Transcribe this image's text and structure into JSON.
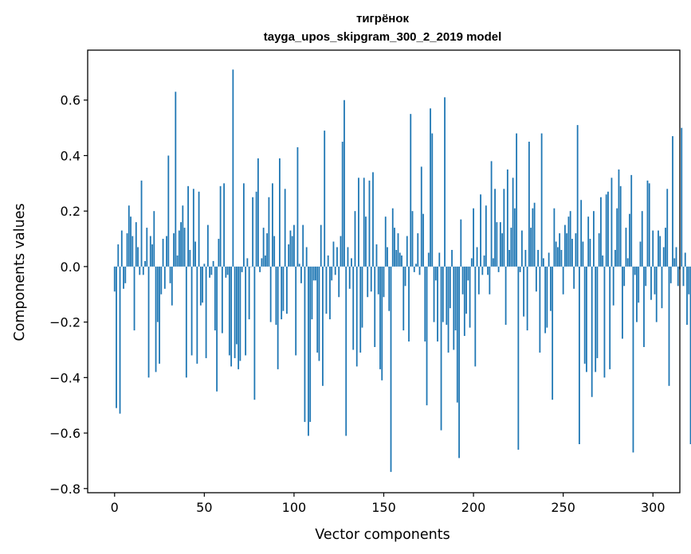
{
  "chart_data": {
    "type": "bar",
    "title": "тигрёнок",
    "subtitle": "tayga_upos_skipgram_300_2_2019 model",
    "xlabel": "Vector components",
    "ylabel": "Components values",
    "xlim": [
      -15,
      315
    ],
    "ylim": [
      -0.815,
      0.78
    ],
    "xticks": [
      0,
      50,
      100,
      150,
      200,
      250,
      300
    ],
    "xtick_labels": [
      "0",
      "50",
      "100",
      "150",
      "200",
      "250",
      "300"
    ],
    "yticks": [
      -0.8,
      -0.6,
      -0.4,
      -0.2,
      0.0,
      0.2,
      0.4,
      0.6
    ],
    "ytick_labels": [
      "−0.8",
      "−0.6",
      "−0.4",
      "−0.2",
      "0.0",
      "0.2",
      "0.4",
      "0.6"
    ],
    "bar_color": "#1f77b4",
    "values": [
      -0.09,
      -0.51,
      0.08,
      -0.53,
      0.13,
      -0.08,
      -0.06,
      0.12,
      0.22,
      0.18,
      0.11,
      -0.23,
      0.16,
      0.07,
      -0.03,
      0.31,
      -0.03,
      0.02,
      0.14,
      -0.4,
      0.11,
      0.08,
      0.2,
      -0.38,
      -0.2,
      -0.35,
      -0.1,
      0.1,
      -0.08,
      0.11,
      0.4,
      -0.06,
      -0.14,
      0.12,
      0.63,
      0.04,
      0.13,
      0.16,
      0.22,
      0.14,
      -0.4,
      0.29,
      0.06,
      -0.32,
      0.28,
      0.09,
      -0.35,
      0.27,
      -0.14,
      -0.13,
      0.01,
      -0.33,
      0.15,
      -0.04,
      -0.03,
      0.02,
      -0.23,
      -0.45,
      0.1,
      0.29,
      -0.24,
      0.3,
      -0.04,
      -0.03,
      -0.32,
      -0.36,
      0.71,
      -0.33,
      -0.28,
      -0.37,
      -0.34,
      -0.02,
      0.3,
      -0.32,
      0.03,
      -0.19,
      0.0,
      0.25,
      -0.48,
      0.27,
      0.39,
      -0.02,
      0.03,
      0.14,
      0.04,
      0.12,
      0.25,
      -0.2,
      0.3,
      0.11,
      -0.21,
      -0.37,
      0.39,
      -0.19,
      -0.16,
      0.28,
      -0.17,
      0.08,
      0.13,
      0.11,
      0.15,
      -0.32,
      0.43,
      0.01,
      -0.06,
      0.15,
      -0.56,
      0.07,
      -0.61,
      -0.56,
      -0.19,
      -0.05,
      -0.05,
      -0.31,
      -0.34,
      0.15,
      -0.43,
      0.49,
      -0.17,
      0.04,
      -0.19,
      -0.05,
      0.09,
      -0.03,
      0.07,
      -0.11,
      0.11,
      0.45,
      0.6,
      -0.61,
      0.07,
      -0.08,
      0.03,
      -0.3,
      0.2,
      -0.36,
      0.32,
      -0.31,
      -0.22,
      0.32,
      0.18,
      -0.11,
      0.31,
      -0.09,
      0.34,
      -0.29,
      0.08,
      -0.1,
      -0.37,
      -0.41,
      -0.11,
      0.18,
      0.07,
      -0.16,
      -0.74,
      0.21,
      0.14,
      0.06,
      0.12,
      0.05,
      0.04,
      -0.23,
      -0.07,
      0.11,
      -0.27,
      0.55,
      0.2,
      -0.02,
      0.01,
      0.12,
      -0.03,
      0.36,
      0.19,
      -0.27,
      -0.5,
      0.05,
      0.57,
      0.48,
      -0.2,
      -0.05,
      -0.27,
      0.05,
      -0.59,
      -0.2,
      0.61,
      -0.21,
      -0.31,
      -0.15,
      0.06,
      -0.3,
      -0.23,
      -0.49,
      -0.69,
      0.17,
      -0.1,
      -0.25,
      -0.17,
      -0.05,
      -0.22,
      0.03,
      0.21,
      -0.36,
      0.07,
      -0.1,
      0.26,
      -0.03,
      0.04,
      0.22,
      -0.03,
      -0.1,
      0.38,
      0.03,
      0.28,
      0.16,
      -0.02,
      0.16,
      0.12,
      0.28,
      -0.21,
      0.35,
      0.06,
      0.14,
      0.32,
      0.21,
      0.48,
      -0.66,
      -0.02,
      0.13,
      -0.18,
      0.06,
      -0.23,
      0.45,
      0.14,
      0.21,
      0.23,
      -0.09,
      0.06,
      -0.31,
      0.48,
      0.03,
      -0.24,
      -0.22,
      0.05,
      -0.16,
      -0.48,
      0.21,
      0.09,
      0.07,
      0.12,
      0.06,
      -0.1,
      0.15,
      0.12,
      0.18,
      0.2,
      0.1,
      -0.08,
      0.12,
      0.51,
      -0.64,
      0.24,
      0.09,
      -0.35,
      -0.38,
      0.18,
      0.1,
      -0.47,
      0.2,
      -0.38,
      -0.33,
      0.12,
      0.25,
      0.04,
      -0.4,
      0.26,
      0.27,
      -0.37,
      0.32,
      -0.14,
      0.06,
      0.21,
      0.35,
      0.29,
      -0.26,
      -0.07,
      0.14,
      0.03,
      0.19,
      0.33,
      -0.67,
      -0.03,
      -0.2,
      -0.13,
      0.09,
      0.2,
      -0.29,
      -0.07,
      0.31,
      0.3,
      -0.12,
      0.13,
      -0.1,
      -0.2,
      0.13,
      0.11,
      -0.15,
      0.07,
      0.14,
      0.28,
      -0.43,
      -0.06,
      0.47,
      0.03,
      0.07,
      -0.07,
      -0.01,
      0.5,
      -0.07,
      0.05,
      -0.21,
      -0.1,
      -0.64
    ]
  }
}
